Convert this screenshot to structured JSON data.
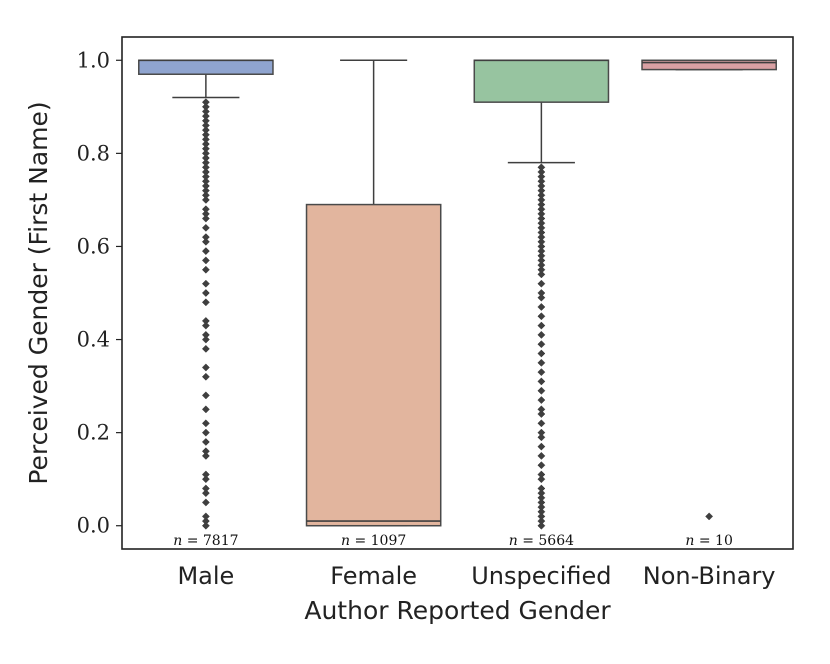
{
  "chart_data": {
    "type": "box",
    "title": "",
    "xlabel": "Author Reported Gender",
    "ylabel": "Perceived Gender (First Name)",
    "ylim": [
      -0.05,
      1.05
    ],
    "yticks": [
      0.0,
      0.2,
      0.4,
      0.6,
      0.8,
      1.0
    ],
    "ytick_labels": [
      "0.0",
      "0.2",
      "0.4",
      "0.6",
      "0.8",
      "1.0"
    ],
    "grid": false,
    "categories": [
      "Male",
      "Female",
      "Unspecified",
      "Non-Binary"
    ],
    "boxes": [
      {
        "name": "Male",
        "color": "#8fa4cf",
        "q1": 0.97,
        "median": 1.0,
        "q3": 1.0,
        "whisker_low": 0.92,
        "whisker_high": 1.0,
        "n_text": "n = 7817",
        "outliers": [
          0.0,
          0.01,
          0.02,
          0.05,
          0.07,
          0.08,
          0.1,
          0.11,
          0.15,
          0.16,
          0.18,
          0.2,
          0.22,
          0.25,
          0.28,
          0.32,
          0.34,
          0.38,
          0.4,
          0.41,
          0.43,
          0.44,
          0.48,
          0.5,
          0.52,
          0.55,
          0.57,
          0.59,
          0.61,
          0.62,
          0.64,
          0.66,
          0.67,
          0.68,
          0.7,
          0.71,
          0.72,
          0.73,
          0.74,
          0.75,
          0.76,
          0.77,
          0.78,
          0.79,
          0.8,
          0.81,
          0.82,
          0.83,
          0.84,
          0.85,
          0.86,
          0.87,
          0.88,
          0.89,
          0.9,
          0.91
        ]
      },
      {
        "name": "Female",
        "color": "#e2b59e",
        "q1": 0.0,
        "median": 0.01,
        "q3": 0.69,
        "whisker_low": 0.0,
        "whisker_high": 1.0,
        "n_text": "n = 1097",
        "outliers": []
      },
      {
        "name": "Unspecified",
        "color": "#97c4a0",
        "q1": 0.91,
        "median": 1.0,
        "q3": 1.0,
        "whisker_low": 0.78,
        "whisker_high": 1.0,
        "n_text": "n = 5664",
        "outliers": [
          0.0,
          0.01,
          0.02,
          0.03,
          0.04,
          0.05,
          0.06,
          0.07,
          0.08,
          0.1,
          0.11,
          0.13,
          0.15,
          0.17,
          0.19,
          0.2,
          0.22,
          0.24,
          0.25,
          0.27,
          0.29,
          0.31,
          0.33,
          0.35,
          0.37,
          0.39,
          0.41,
          0.43,
          0.45,
          0.47,
          0.49,
          0.5,
          0.52,
          0.54,
          0.55,
          0.56,
          0.57,
          0.58,
          0.59,
          0.6,
          0.61,
          0.62,
          0.63,
          0.64,
          0.65,
          0.66,
          0.67,
          0.68,
          0.69,
          0.7,
          0.71,
          0.72,
          0.73,
          0.74,
          0.75,
          0.76,
          0.77
        ]
      },
      {
        "name": "Non-Binary",
        "color": "#d9a0a3",
        "q1": 0.98,
        "median": 0.995,
        "q3": 1.0,
        "whisker_low": 0.98,
        "whisker_high": 1.0,
        "n_text": "n = 10",
        "outliers": [
          0.02
        ]
      }
    ]
  }
}
